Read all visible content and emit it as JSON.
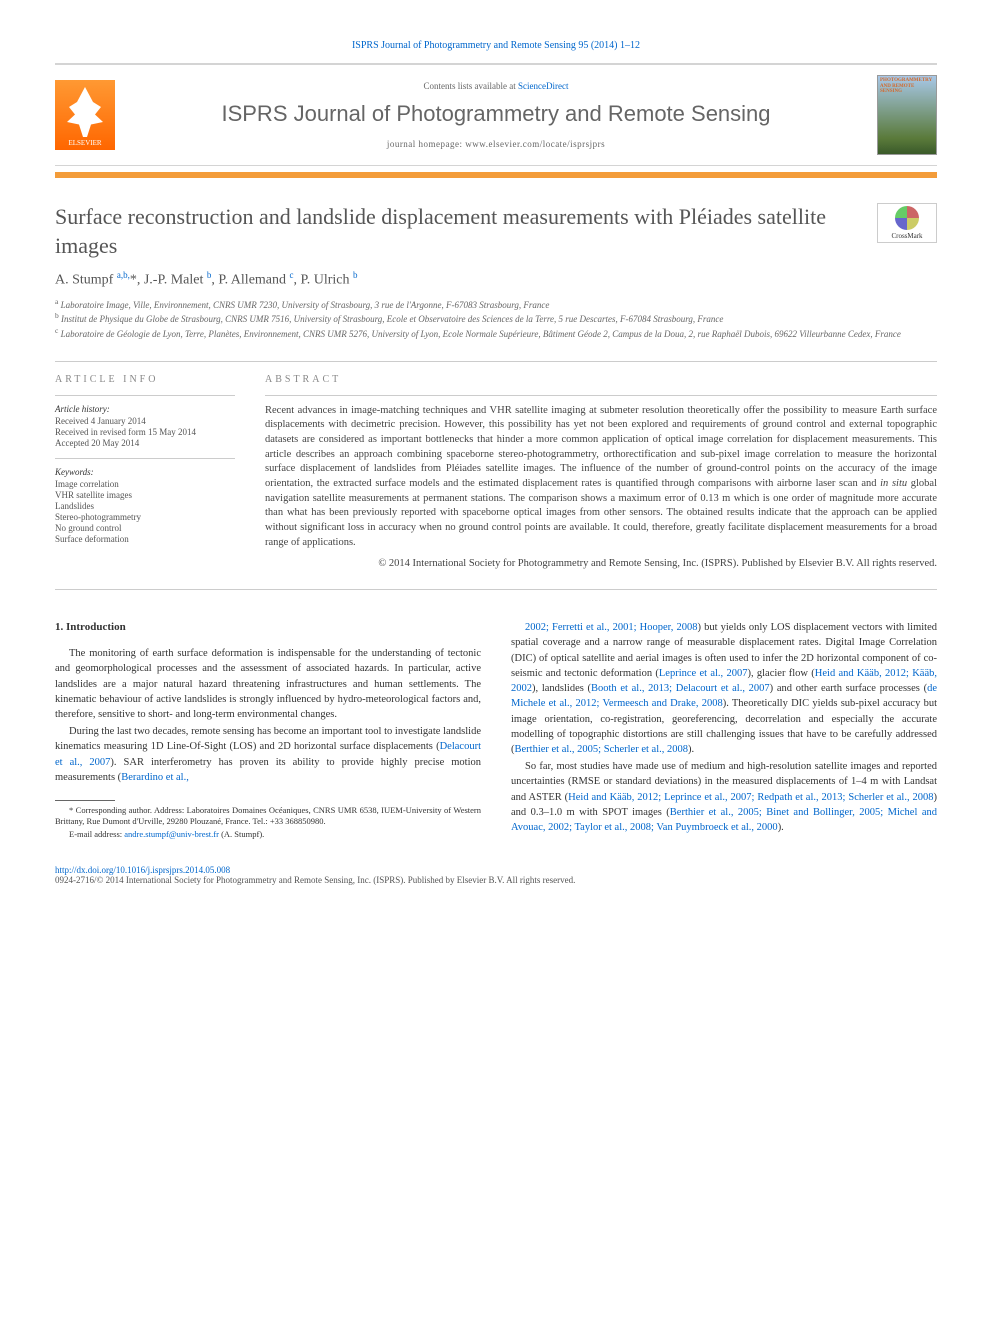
{
  "header": {
    "citation": "ISPRS Journal of Photogrammetry and Remote Sensing 95 (2014) 1–12",
    "contents_text": "Contents lists available at ",
    "contents_link": "ScienceDirect",
    "journal_name": "ISPRS Journal of Photogrammetry and Remote Sensing",
    "homepage_label": "journal homepage: ",
    "homepage_url": "www.elsevier.com/locate/isprsjprs",
    "elsevier_label": "ELSEVIER",
    "cover_title": "PHOTOGRAMMETRY AND REMOTE SENSING"
  },
  "article": {
    "title": "Surface reconstruction and landslide displacement measurements with Pléiades satellite images",
    "crossmark_label": "CrossMark",
    "authors_html": "A. Stumpf <sup>a,b,</sup>*, J.-P. Malet <sup>b</sup>, P. Allemand <sup>c</sup>, P. Ulrich <sup>b</sup>",
    "affiliations": {
      "a": "Laboratoire Image, Ville, Environnement, CNRS UMR 7230, University of Strasbourg, 3 rue de l'Argonne, F-67083 Strasbourg, France",
      "b": "Institut de Physique du Globe de Strasbourg, CNRS UMR 7516, University of Strasbourg, Ecole et Observatoire des Sciences de la Terre, 5 rue Descartes, F-67084 Strasbourg, France",
      "c": "Laboratoire de Géologie de Lyon, Terre, Planètes, Environnement, CNRS UMR 5276, University of Lyon, Ecole Normale Supérieure, Bâtiment Géode 2, Campus de la Doua, 2, rue Raphaël Dubois, 69622 Villeurbanne Cedex, France"
    }
  },
  "info": {
    "heading": "ARTICLE INFO",
    "history_label": "Article history:",
    "received": "Received 4 January 2014",
    "revised": "Received in revised form 15 May 2014",
    "accepted": "Accepted 20 May 2014",
    "keywords_label": "Keywords:",
    "keywords": [
      "Image correlation",
      "VHR satellite images",
      "Landslides",
      "Stereo-photogrammetry",
      "No ground control",
      "Surface deformation"
    ]
  },
  "abstract": {
    "heading": "ABSTRACT",
    "text": "Recent advances in image-matching techniques and VHR satellite imaging at submeter resolution theoretically offer the possibility to measure Earth surface displacements with decimetric precision. However, this possibility has yet not been explored and requirements of ground control and external topographic datasets are considered as important bottlenecks that hinder a more common application of optical image correlation for displacement measurements. This article describes an approach combining spaceborne stereo-photogrammetry, orthorectification and sub-pixel image correlation to measure the horizontal surface displacement of landslides from Pléiades satellite images. The influence of the number of ground-control points on the accuracy of the image orientation, the extracted surface models and the estimated displacement rates is quantified through comparisons with airborne laser scan and in situ global navigation satellite measurements at permanent stations. The comparison shows a maximum error of 0.13 m which is one order of magnitude more accurate than what has been previously reported with spaceborne optical images from other sensors. The obtained results indicate that the approach can be applied without significant loss in accuracy when no ground control points are available. It could, therefore, greatly facilitate displacement measurements for a broad range of applications.",
    "copyright": "© 2014 International Society for Photogrammetry and Remote Sensing, Inc. (ISPRS). Published by Elsevier B.V. All rights reserved."
  },
  "body": {
    "section_heading": "1. Introduction",
    "para1": "The monitoring of earth surface deformation is indispensable for the understanding of tectonic and geomorphological processes and the assessment of associated hazards. In particular, active landslides are a major natural hazard threatening infrastructures and human settlements. The kinematic behaviour of active landslides is strongly influenced by hydro-meteorological factors and, therefore, sensitive to short- and long-term environmental changes.",
    "para2_pre": "During the last two decades, remote sensing has become an important tool to investigate landslide kinematics measuring 1D Line-Of-Sight (LOS) and 2D horizontal surface displacements (",
    "para2_link": "Delacourt et al., 2007",
    "para2_mid": "). SAR interferometry has proven its ability to provide highly precise motion measurements (",
    "para2_link2": "Berardino et al.,",
    "para3_links1": "2002; Ferretti et al., 2001; Hooper, 2008",
    "para3_text1": ") but yields only LOS displacement vectors with limited spatial coverage and a narrow range of measurable displacement rates. Digital Image Correlation (DIC) of optical satellite and aerial images is often used to infer the 2D horizontal component of co-seismic and tectonic deformation (",
    "para3_link2": "Leprince et al., 2007",
    "para3_text2": "), glacier flow (",
    "para3_link3": "Heid and Kääb, 2012; Kääb, 2002",
    "para3_text3": "), landslides (",
    "para3_link4": "Booth et al., 2013; Delacourt et al., 2007",
    "para3_text4": ") and other earth surface processes (",
    "para3_link5": "de Michele et al., 2012; Vermeesch and Drake, 2008",
    "para3_text5": "). Theoretically DIC yields sub-pixel accuracy but image orientation, co-registration, georeferencing, decorrelation and especially the accurate modelling of topographic distortions are still challenging issues that have to be carefully addressed (",
    "para3_link6": "Berthier et al., 2005; Scherler et al., 2008",
    "para3_text6": ").",
    "para4_text1": "So far, most studies have made use of medium and high-resolution satellite images and reported uncertainties (RMSE or standard deviations) in the measured displacements of 1–4 m with Landsat and ASTER (",
    "para4_link1": "Heid and Kääb, 2012; Leprince et al., 2007; Redpath et al., 2013; Scherler et al., 2008",
    "para4_text2": ") and 0.3–1.0 m with SPOT images (",
    "para4_link2": "Berthier et al., 2005; Binet and Bollinger, 2005; Michel and Avouac, 2002; Taylor et al., 2008; Van Puymbroeck et al., 2000",
    "para4_text3": ")."
  },
  "footnote": {
    "corresponding": "* Corresponding author. Address: Laboratoires Domaines Océaniques, CNRS UMR 6538, IUEM-University of Western Brittany, Rue Dumont d'Urville, 29280 Plouzané, France. Tel.: +33 368850980.",
    "email_label": "E-mail address: ",
    "email": "andre.stumpf@univ-brest.fr",
    "email_suffix": " (A. Stumpf)."
  },
  "footer": {
    "doi": "http://dx.doi.org/10.1016/j.isprsjprs.2014.05.008",
    "issn_line": "0924-2716/© 2014 International Society for Photogrammetry and Remote Sensing, Inc. (ISPRS). Published by Elsevier B.V. All rights reserved."
  }
}
